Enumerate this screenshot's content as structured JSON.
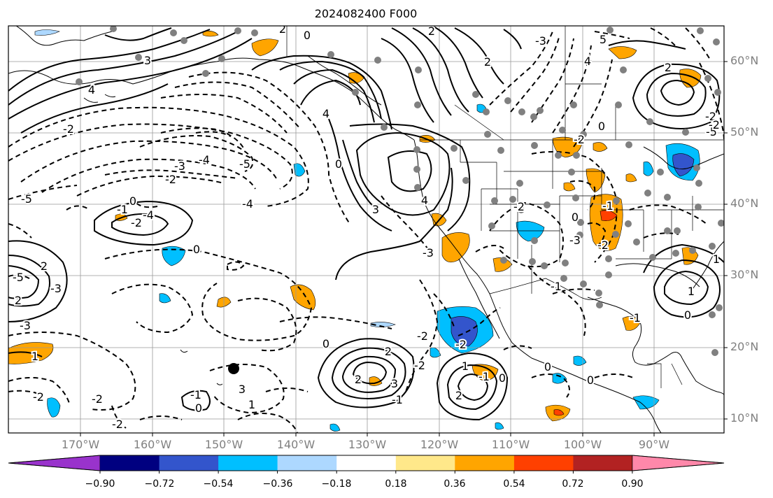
{
  "title": "2024082400 F000",
  "lat_labels": [
    "60°N",
    "50°N",
    "40°N",
    "30°N",
    "20°N",
    "10°N"
  ],
  "lon_labels": [
    "170°W",
    "160°W",
    "150°W",
    "140°W",
    "130°W",
    "120°W",
    "110°W",
    "100°W",
    "90°W"
  ],
  "contour_labels": [
    "0",
    "2",
    "5",
    "4",
    "3",
    "-4",
    "-5",
    "4",
    "-3",
    "-4",
    "-5",
    "-3",
    "0",
    "-1",
    "-2",
    "4",
    "-2",
    "3",
    "0",
    "2",
    "-5",
    "2",
    "-3",
    "4",
    "-2",
    "-3",
    "-4",
    "-5",
    "-2",
    "1",
    "-2",
    "0",
    "-2",
    "2",
    "1",
    "-1",
    "-2",
    "3",
    "-2",
    "0",
    "-1",
    "2",
    "-3",
    "-2",
    "2",
    "-1",
    "-2",
    "0",
    "1",
    "0",
    "0",
    "-1",
    "0",
    "-2",
    "-2",
    "0",
    "-1",
    "-2",
    "2",
    "1",
    "0",
    "1",
    "2",
    "-3",
    "-1",
    "-2",
    "0",
    "2",
    "3",
    "1"
  ],
  "colorbar": {
    "ticks": [
      "−0.90",
      "−0.72",
      "−0.54",
      "−0.36",
      "−0.18",
      "0.18",
      "0.36",
      "0.54",
      "0.72",
      "0.90"
    ],
    "colors": [
      "#9933cc",
      "#000080",
      "#3355cc",
      "#00bfff",
      "#add8ff",
      "#ffffff",
      "#ffe88a",
      "#ffa500",
      "#ff4000",
      "#b22222",
      "#ff88aa"
    ]
  },
  "marker_colors": {
    "station": "#808080",
    "storm_center": "#000000"
  }
}
